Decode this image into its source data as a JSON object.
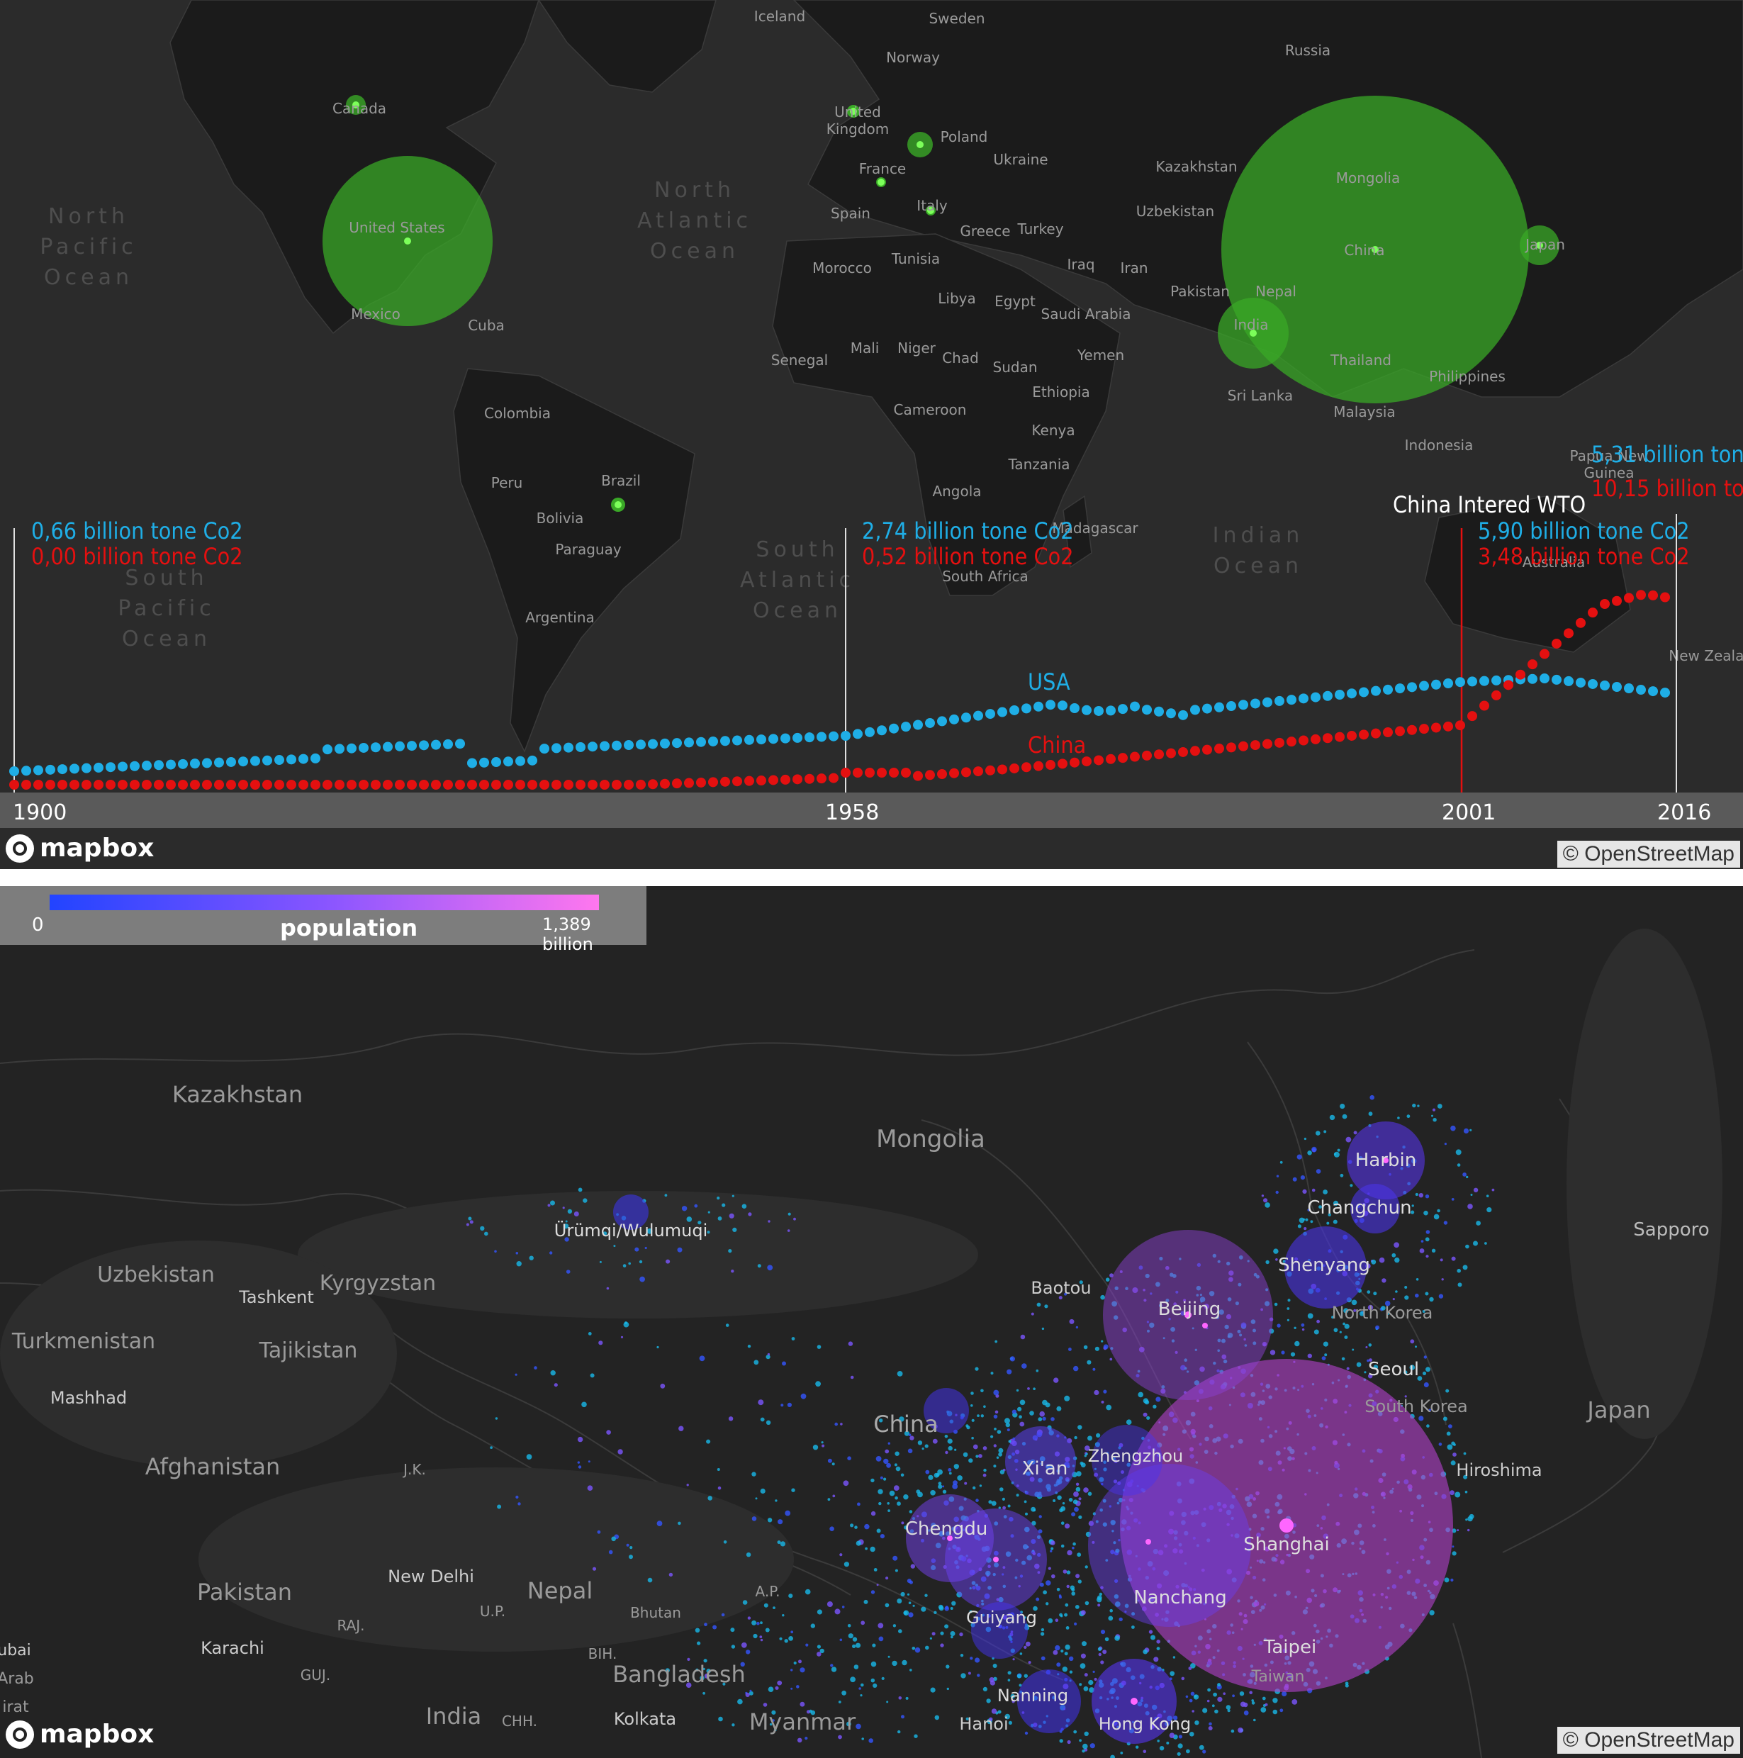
{
  "top_map": {
    "oceans": [
      {
        "id": "north-pacific",
        "lines": [
          "North",
          "Pacific",
          "Ocean"
        ]
      },
      {
        "id": "north-atlantic",
        "lines": [
          "North",
          "Atlantic",
          "Ocean"
        ]
      },
      {
        "id": "south-pacific",
        "lines": [
          "South",
          "Pacific",
          "Ocean"
        ]
      },
      {
        "id": "south-atlantic",
        "lines": [
          "South",
          "Atlantic",
          "Ocean"
        ]
      },
      {
        "id": "indian",
        "lines": [
          "Indian",
          "Ocean"
        ]
      }
    ],
    "places": [
      "Iceland",
      "Sweden",
      "Norway",
      "Russia",
      "Canada",
      "United Kingdom",
      "Poland",
      "France",
      "Ukraine",
      "Kazakhstan",
      "Mongolia",
      "Spain",
      "Italy",
      "Greece",
      "Turkey",
      "Uzbekistan",
      "United States",
      "Morocco",
      "Tunisia",
      "Iraq",
      "Iran",
      "China",
      "Japan",
      "Libya",
      "Egypt",
      "Saudi Arabia",
      "Pakistan",
      "Nepal",
      "India",
      "Mexico",
      "Cuba",
      "Mali",
      "Niger",
      "Senegal",
      "Chad",
      "Sudan",
      "Yemen",
      "Ethiopia",
      "Thailand",
      "Philippines",
      "Sri Lanka",
      "Cameroon",
      "Kenya",
      "Malaysia",
      "Colombia",
      "Indonesia",
      "Tanzania",
      "Papua New Guinea",
      "Brazil",
      "Peru",
      "Bolivia",
      "Angola",
      "Madagascar",
      "Paraguay",
      "South Africa",
      "Australia",
      "Argentina",
      "New Zealand"
    ],
    "timeline": {
      "years": [
        "1900",
        "1958",
        "2001",
        "2016"
      ],
      "series_labels": {
        "usa": "USA",
        "china": "China"
      },
      "event_label": "China Intered WTO",
      "annotations": [
        {
          "year": "1900",
          "usa": "0,66  billion tone Co2",
          "china": "0,00  billion tone Co2"
        },
        {
          "year": "1958",
          "usa": "2,74  billion tone Co2",
          "china": "0,52  billion tone Co2"
        },
        {
          "year": "2001",
          "usa": "5,90  billion tone Co2",
          "china": "3,48  billion tone Co2"
        },
        {
          "year": "2016",
          "usa": "5,31 billion tone C",
          "china": "10,15 billion tone C"
        }
      ],
      "colors": {
        "usa": "#1faee6",
        "china": "#e41010",
        "bubble": "#3aa827"
      }
    },
    "mapbox": "mapbox",
    "attribution": "© OpenStreetMap"
  },
  "bottom_map": {
    "legend": {
      "title": "population",
      "min": "0",
      "max": "1,389 billion"
    },
    "places": [
      "Kazakhstan",
      "Mongolia",
      "Ürümqi/Wulumuqi",
      "Harbin",
      "Changchun",
      "Sapporo",
      "Uzbekistan",
      "Kyrgyzstan",
      "Tashkent",
      "Shenyang",
      "Baotou",
      "Beijing",
      "North Korea",
      "Turkmenistan",
      "Tajikistan",
      "Seoul",
      "Mashhad",
      "South Korea",
      "Japan",
      "China",
      "Afghanistan",
      "J.K.",
      "Xi'an",
      "Zhengzhou",
      "Hiroshima",
      "Chengdu",
      "Shanghai",
      "New Delhi",
      "Pakistan",
      "Nepal",
      "A.P.",
      "Bhutan",
      "U.P.",
      "RAJ.",
      "Nanchang",
      "Guiyang",
      "Taipei",
      "Karachi",
      "BIH.",
      "Taiwan",
      "Bangladesh",
      "GUJ.",
      "Nanning",
      "India",
      "CHH.",
      "Kolkata",
      "Myanmar",
      "Hanoi",
      "Hong Kong",
      "ubai",
      "Arab",
      "irat"
    ],
    "mapbox": "mapbox",
    "attribution": "© OpenStreetMap"
  }
}
